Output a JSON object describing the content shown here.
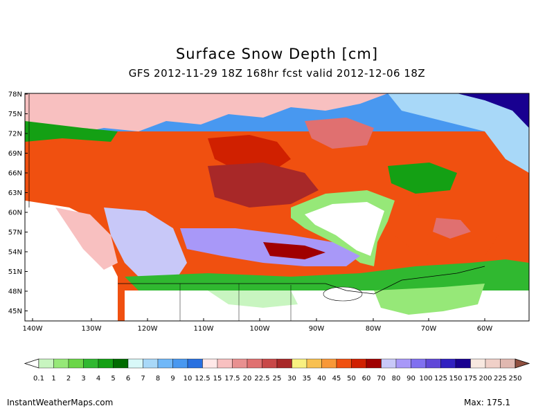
{
  "header": {
    "title": "Surface Snow Depth [cm]",
    "subtitle": "GFS 2012-11-29 18Z 168hr fcst valid 2012-12-06 18Z"
  },
  "axes": {
    "lat_labels": [
      "78N",
      "75N",
      "72N",
      "69N",
      "66N",
      "63N",
      "60N",
      "57N",
      "54N",
      "51N",
      "48N",
      "45N"
    ],
    "lon_labels": [
      "140W",
      "130W",
      "120W",
      "110W",
      "100W",
      "90W",
      "80W",
      "70W",
      "60W"
    ]
  },
  "legend": {
    "labels": [
      "0.1",
      "1",
      "2",
      "3",
      "4",
      "5",
      "6",
      "7",
      "8",
      "9",
      "10",
      "12.5",
      "15",
      "17.5",
      "20",
      "22.5",
      "25",
      "30",
      "35",
      "40",
      "45",
      "50",
      "60",
      "70",
      "80",
      "90",
      "100",
      "125",
      "150",
      "175",
      "200",
      "225",
      "250"
    ],
    "colors": [
      "#c8f5c0",
      "#96e878",
      "#6bd648",
      "#30b830",
      "#14a014",
      "#006b00",
      "#d8f8f8",
      "#a8d8f8",
      "#70b8f8",
      "#4898f0",
      "#2870e0",
      "#ffe8e8",
      "#f8c0c0",
      "#e89090",
      "#e07070",
      "#c84848",
      "#a82828",
      "#f8f080",
      "#f8c050",
      "#f89838",
      "#f05010",
      "#d02000",
      "#a00000",
      "#c8c8f8",
      "#a898f8",
      "#8070f0",
      "#6048d8",
      "#3020c0",
      "#180090",
      "#f8e8e0",
      "#f0d0c8",
      "#e0b8b0",
      "#c89890",
      "#b07870",
      "#986050"
    ],
    "arrow_left_color": "#ffffff",
    "arrow_right_color": "#905040"
  },
  "footer": {
    "source": "InstantWeatherMaps.com",
    "max_label": "Max:",
    "max_value": "175.1"
  }
}
